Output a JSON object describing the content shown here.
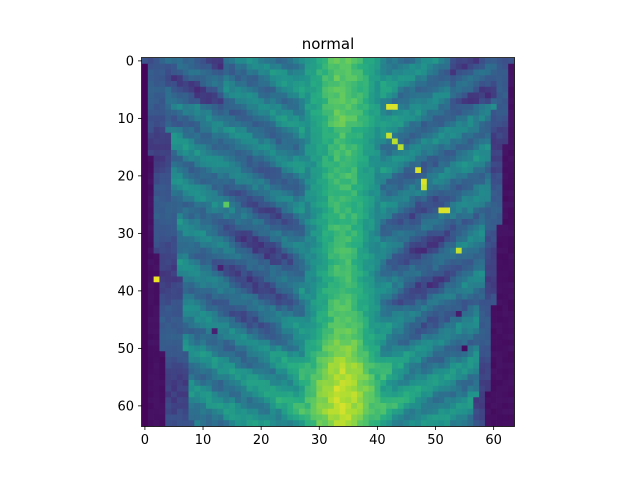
{
  "chart_data": {
    "type": "heatmap",
    "title": "normal",
    "xlabel": "",
    "ylabel": "",
    "colormap": "viridis",
    "grid": false,
    "legend": "none",
    "image_shape": [
      64,
      64
    ],
    "xlim": [
      -0.5,
      63.5
    ],
    "ylim": [
      63.5,
      -0.5
    ],
    "x_ticks": [
      0,
      10,
      20,
      30,
      40,
      50,
      60
    ],
    "y_ticks": [
      0,
      10,
      20,
      30,
      40,
      50,
      60
    ],
    "x_tick_labels": [
      "0",
      "10",
      "20",
      "30",
      "40",
      "50",
      "60"
    ],
    "y_tick_labels": [
      "0",
      "10",
      "20",
      "30",
      "40",
      "50",
      "60"
    ],
    "value_range": [
      0,
      1
    ],
    "bright_spots": [
      {
        "x": 2,
        "y": 38,
        "value": 0.98
      },
      {
        "x": 42,
        "y": 8,
        "value": 0.95
      },
      {
        "x": 43,
        "y": 8,
        "value": 0.95
      },
      {
        "x": 42,
        "y": 13,
        "value": 0.92
      },
      {
        "x": 43,
        "y": 14,
        "value": 0.9
      },
      {
        "x": 44,
        "y": 15,
        "value": 0.9
      },
      {
        "x": 47,
        "y": 19,
        "value": 0.95
      },
      {
        "x": 48,
        "y": 21,
        "value": 0.95
      },
      {
        "x": 48,
        "y": 22,
        "value": 0.92
      },
      {
        "x": 51,
        "y": 26,
        "value": 0.95
      },
      {
        "x": 52,
        "y": 26,
        "value": 0.95
      },
      {
        "x": 54,
        "y": 33,
        "value": 0.92
      },
      {
        "x": 14,
        "y": 25,
        "value": 0.75
      }
    ],
    "dark_spots": [
      {
        "x": 13,
        "y": 36,
        "value": 0.12
      },
      {
        "x": 12,
        "y": 47,
        "value": 0.12
      },
      {
        "x": 54,
        "y": 44,
        "value": 0.1
      },
      {
        "x": 55,
        "y": 50,
        "value": 0.05
      }
    ]
  },
  "colors": {
    "background": "#ffffff",
    "axis": "#000000"
  }
}
